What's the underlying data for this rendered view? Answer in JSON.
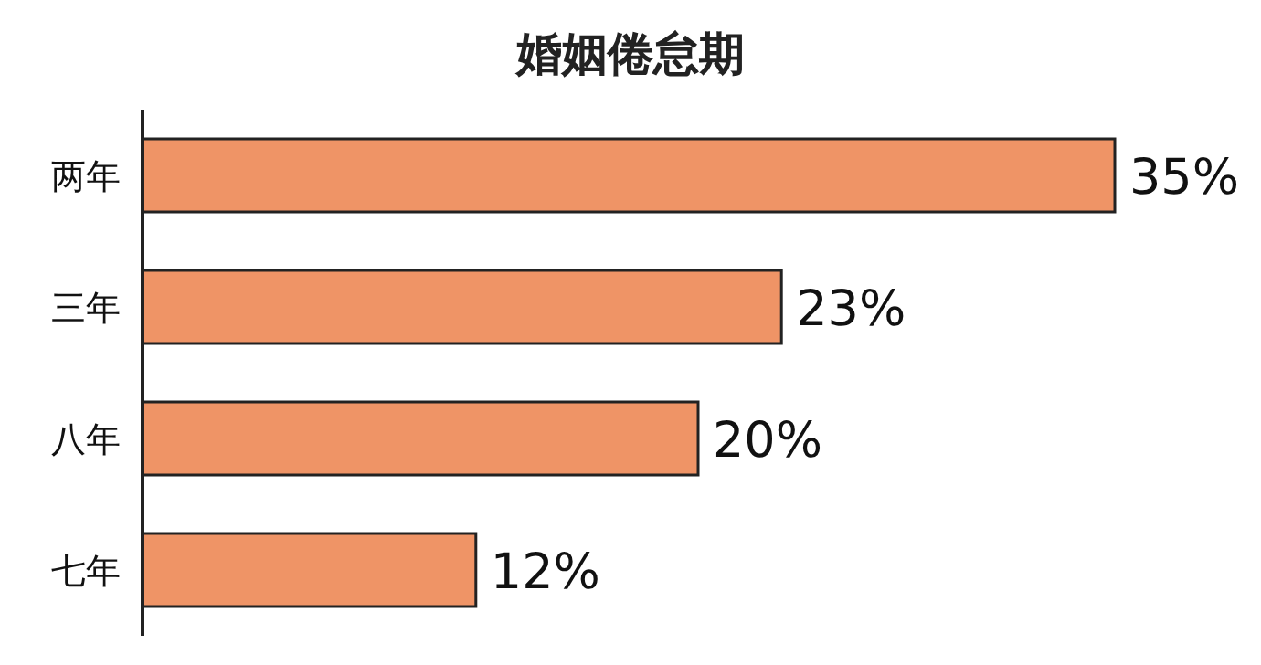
{
  "chart_data": {
    "type": "bar",
    "orientation": "horizontal",
    "title": "婚姻倦怠期",
    "categories": [
      "两年",
      "三年",
      "八年",
      "七年"
    ],
    "values": [
      35,
      23,
      20,
      12
    ],
    "value_labels": [
      "35%",
      "23%",
      "20%",
      "12%"
    ],
    "color": "#ef9466",
    "xlim": [
      0,
      35
    ]
  }
}
